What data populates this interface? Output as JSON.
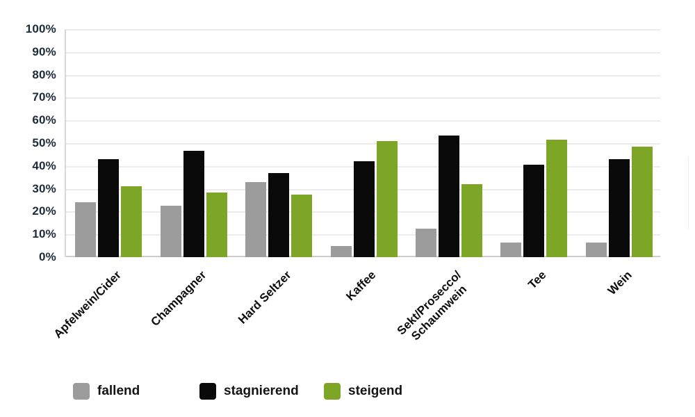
{
  "chart_data": {
    "type": "bar",
    "title": "",
    "xlabel": "",
    "ylabel": "",
    "categories": [
      "Apfelwein/Cider",
      "Champagner",
      "Hard Seltzer",
      "Kaffee",
      "Sekt/Prosecco/\nSchaumwein",
      "Tee",
      "Wein"
    ],
    "series": [
      {
        "name": "fallend",
        "color": "#9c9c9c",
        "values": [
          24,
          22.5,
          33,
          5,
          12.5,
          6.5,
          6.5
        ]
      },
      {
        "name": "stagnierend",
        "color": "#0a0a0a",
        "values": [
          43,
          46.5,
          37,
          42,
          53.5,
          40.5,
          43
        ]
      },
      {
        "name": "steigend",
        "color": "#7da626",
        "values": [
          31,
          28.5,
          27.5,
          51,
          32,
          51.5,
          48.5
        ]
      }
    ],
    "ylim": [
      0,
      100
    ],
    "ytick_step": 10,
    "yticks": [
      "0%",
      "10%",
      "20%",
      "30%",
      "40%",
      "50%",
      "60%",
      "70%",
      "80%",
      "90%",
      "100%"
    ],
    "grid": true,
    "legend_position": "bottom",
    "colors": {
      "gridline": "#ececec",
      "axis_line": "#cfcdc9",
      "plot_border": "#d8d8d8",
      "ytick_text": "#1d2b3a",
      "xlabel_text": "#0d0d0d",
      "background": "#ffffff"
    }
  }
}
